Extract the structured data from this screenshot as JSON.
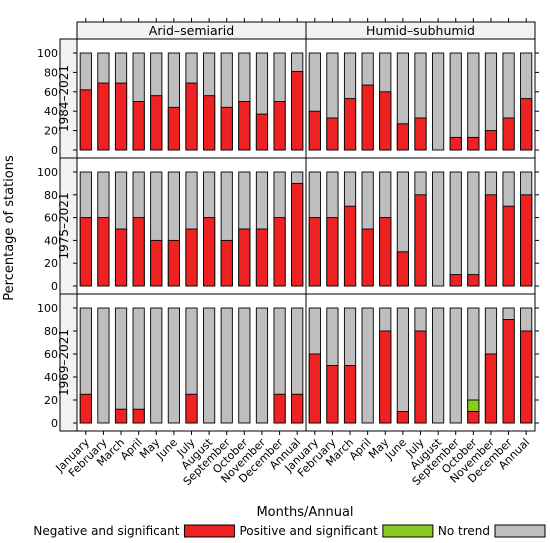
{
  "chart_data": {
    "type": "bar",
    "stacked": true,
    "ylabel": "Percentage of stations",
    "xlabel": "Months/Annual",
    "ylim": [
      0,
      100
    ],
    "yticks": [
      0,
      20,
      40,
      60,
      80,
      100
    ],
    "categories": [
      "January",
      "February",
      "March",
      "April",
      "May",
      "June",
      "July",
      "August",
      "September",
      "October",
      "November",
      "December",
      "Annual"
    ],
    "columns": [
      "Arid–semiarid",
      "Humid–subhumid"
    ],
    "rows": [
      "1984–2021",
      "1975–2021",
      "1969–2021"
    ],
    "legend": {
      "placement": "bottom",
      "items": [
        {
          "label": "Negative and significant",
          "color": "#ee2222"
        },
        {
          "label": "Positive and significant",
          "color": "#88cc22"
        },
        {
          "label": "No trend",
          "color": "#bebebe"
        }
      ]
    },
    "colors": {
      "positive": "#ee2222",
      "negative": "#88cc22",
      "no_trend": "#bebebe",
      "strip": "#f2f2f2"
    },
    "panels": [
      {
        "row": 0,
        "col": 0,
        "positive": [
          62,
          69,
          69,
          50,
          56,
          44,
          69,
          56,
          44,
          50,
          37,
          50,
          81
        ],
        "negative": [
          0,
          0,
          0,
          0,
          0,
          0,
          0,
          0,
          0,
          0,
          0,
          0,
          0
        ]
      },
      {
        "row": 0,
        "col": 1,
        "positive": [
          40,
          33,
          53,
          67,
          60,
          27,
          33,
          0,
          13,
          13,
          20,
          33,
          53
        ],
        "negative": [
          0,
          0,
          0,
          0,
          0,
          0,
          0,
          0,
          0,
          0,
          0,
          0,
          0
        ]
      },
      {
        "row": 1,
        "col": 0,
        "positive": [
          60,
          60,
          50,
          60,
          40,
          40,
          50,
          60,
          40,
          50,
          50,
          60,
          90
        ],
        "negative": [
          0,
          0,
          0,
          0,
          0,
          0,
          0,
          0,
          0,
          0,
          0,
          0,
          0
        ]
      },
      {
        "row": 1,
        "col": 1,
        "positive": [
          60,
          60,
          70,
          50,
          60,
          30,
          80,
          0,
          10,
          10,
          80,
          70,
          80
        ],
        "negative": [
          0,
          0,
          0,
          0,
          0,
          0,
          0,
          0,
          0,
          0,
          0,
          0,
          0
        ]
      },
      {
        "row": 2,
        "col": 0,
        "positive": [
          25,
          0,
          12,
          12,
          0,
          0,
          25,
          0,
          0,
          0,
          0,
          25,
          25
        ],
        "negative": [
          0,
          0,
          0,
          0,
          0,
          0,
          0,
          0,
          0,
          0,
          0,
          0,
          0
        ]
      },
      {
        "row": 2,
        "col": 1,
        "positive": [
          60,
          50,
          50,
          0,
          80,
          10,
          80,
          0,
          0,
          10,
          60,
          90,
          80
        ],
        "negative": [
          0,
          0,
          0,
          0,
          0,
          0,
          0,
          0,
          0,
          10,
          0,
          0,
          0
        ]
      }
    ]
  }
}
